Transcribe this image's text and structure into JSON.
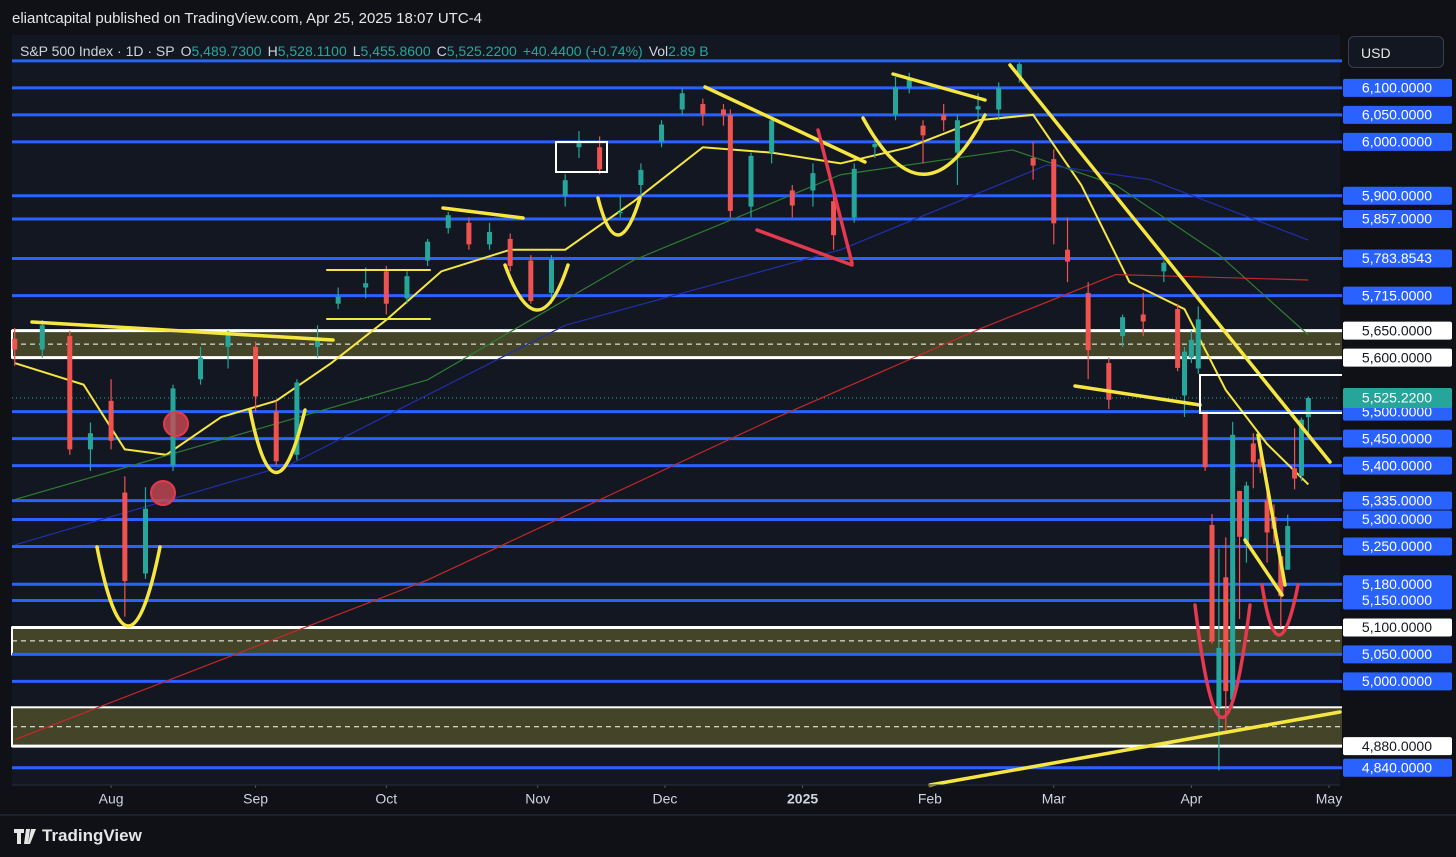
{
  "header": {
    "publisher": "eliantcapital published on TradingView.com, Apr 25, 2025 18:07 UTC-4",
    "brand": "TradingView",
    "currency": "USD"
  },
  "chart_data": {
    "type": "candlestick",
    "title": "S&P 500 Index · 1D · SP",
    "ohlc_legend": [
      {
        "key": "O",
        "value": "5,489.7300"
      },
      {
        "key": "H",
        "value": "5,528.1100"
      },
      {
        "key": "L",
        "value": "5,455.8600"
      },
      {
        "key": "C",
        "value": "5,525.2200"
      },
      {
        "key": "",
        "value": "+40.4400 (+0.74%)"
      },
      {
        "key": "Vol",
        "value": "2.89 B"
      }
    ],
    "up_color": "#26a69a",
    "down_color": "#ef5350",
    "xlim": [
      -0.4,
      192.6
    ],
    "ylim": [
      4808,
      6198
    ],
    "xticks": [
      {
        "value": 14,
        "label": "Aug"
      },
      {
        "value": 35,
        "label": "Sep"
      },
      {
        "value": 54,
        "label": "Oct"
      },
      {
        "value": 76,
        "label": "Nov"
      },
      {
        "value": 94.5,
        "label": "Dec"
      },
      {
        "value": 114.5,
        "label": "2025"
      },
      {
        "value": 133,
        "label": "Feb"
      },
      {
        "value": 151,
        "label": "Mar"
      },
      {
        "value": 171,
        "label": "Apr"
      },
      {
        "value": 191,
        "label": "May"
      }
    ],
    "candles": {
      "x": [
        0,
        4,
        8,
        11,
        14,
        16,
        19,
        23,
        27,
        31,
        35,
        38,
        41,
        44,
        47,
        51,
        54,
        57,
        60,
        63,
        66,
        69,
        72,
        75,
        78,
        80,
        82,
        85,
        88,
        91,
        94,
        97,
        100,
        103,
        104,
        107,
        110,
        113,
        116,
        119,
        122,
        125,
        128,
        130,
        132,
        135,
        137,
        140,
        143,
        146,
        148,
        151,
        153,
        156,
        159,
        161,
        164,
        167,
        169,
        170,
        171,
        172,
        173,
        174,
        175,
        176,
        177,
        178,
        179,
        180,
        181,
        182,
        183,
        184,
        185,
        186,
        187,
        188
      ],
      "open": [
        5635,
        5615,
        5640,
        5430,
        5520,
        5350,
        5200,
        5400,
        5560,
        5620,
        5620,
        5500,
        5420,
        5620,
        5700,
        5730,
        5760,
        5710,
        5780,
        5840,
        5850,
        5810,
        5820,
        5780,
        5720,
        5900,
        5990,
        5990,
        5870,
        5920,
        6000,
        6060,
        6070,
        6060,
        6050,
        5880,
        5980,
        5910,
        5910,
        5890,
        5860,
        5990,
        6050,
        6100,
        6030,
        6050,
        5980,
        6060,
        6060,
        6120,
        5970,
        5968,
        5800,
        5720,
        5590,
        5640,
        5680,
        5760,
        5690,
        5530,
        5600,
        5580,
        5500,
        5290,
        4953,
        5193,
        4966,
        5353,
        5255,
        5441,
        5412,
        5335,
        5305,
        5232,
        5207,
        5395,
        5381,
        5489.73
      ],
      "high": [
        5655,
        5670,
        5650,
        5480,
        5560,
        5380,
        5360,
        5550,
        5620,
        5650,
        5630,
        5520,
        5560,
        5660,
        5730,
        5767,
        5770,
        5760,
        5820,
        5870,
        5860,
        5850,
        5830,
        5790,
        5790,
        5940,
        6020,
        6010,
        5900,
        5960,
        6040,
        6099,
        6080,
        6070,
        6060,
        5980,
        6040,
        5920,
        5960,
        5910,
        5960,
        6010,
        6120,
        6128,
        6040,
        6070,
        6050,
        6090,
        6110,
        6147,
        6000,
        5986,
        5860,
        5740,
        5600,
        5680,
        5720,
        5780,
        5700,
        5620,
        5650,
        5695,
        5500,
        5310,
        5246,
        5267,
        5481,
        5353,
        5370,
        5460,
        5450,
        5367,
        5328,
        5232,
        5309,
        5469,
        5489,
        5528.11
      ],
      "low": [
        5585,
        5600,
        5420,
        5390,
        5430,
        5120,
        5190,
        5390,
        5550,
        5580,
        5500,
        5400,
        5410,
        5600,
        5690,
        5710,
        5680,
        5700,
        5770,
        5830,
        5800,
        5800,
        5760,
        5700,
        5700,
        5880,
        5970,
        5940,
        5860,
        5900,
        5990,
        6050,
        6030,
        6030,
        5860,
        5860,
        5960,
        5860,
        5880,
        5800,
        5850,
        5970,
        6040,
        6090,
        5960,
        6020,
        5920,
        6040,
        6040,
        6110,
        5930,
        5810,
        5740,
        5560,
        5505,
        5620,
        5640,
        5740,
        5575,
        5490,
        5590,
        5570,
        5390,
        5070,
        4835,
        4910,
        4950,
        5116,
        5220,
        5358,
        5386,
        5220,
        5255,
        5101,
        5207,
        5356,
        5371,
        5455.86
      ],
      "close": [
        5615,
        5660,
        5430,
        5460,
        5446,
        5186,
        5320,
        5543,
        5600,
        5648,
        5528,
        5408,
        5554,
        5634,
        5713,
        5738,
        5700,
        5751,
        5815,
        5864,
        5810,
        5833,
        5770,
        5705,
        5782,
        5929,
        6001,
        5949,
        5870,
        5948,
        6032,
        6090,
        6051,
        6050,
        5872,
        5974,
        6040,
        5882,
        5942,
        5827,
        5950,
        5996,
        6101,
        6119,
        6012,
        6040,
        6040,
        6066,
        6100,
        6144,
        5956,
        5849,
        5778,
        5614,
        5522,
        5675,
        5667,
        5776,
        5581,
        5611,
        5633,
        5671,
        5397,
        5074,
        5062,
        4982,
        5457,
        5268,
        5363,
        5406,
        5397,
        5276,
        5283,
        5158,
        5288,
        5376,
        5485,
        5525.22
      ]
    },
    "overlays": [
      {
        "color": "#f5e642",
        "x": [
          0,
          10,
          16,
          22,
          30,
          38,
          46,
          54,
          62,
          72,
          80,
          90,
          100,
          110,
          120,
          130,
          140,
          148,
          155,
          162,
          170,
          176,
          182,
          188
        ],
        "values": [
          5590,
          5550,
          5430,
          5420,
          5490,
          5520,
          5590,
          5670,
          5760,
          5800,
          5800,
          5890,
          5990,
          5980,
          5960,
          5990,
          6040,
          6050,
          5920,
          5740,
          5690,
          5540,
          5440,
          5365
        ]
      },
      {
        "color": "#2e7d32",
        "x": [
          0,
          30,
          60,
          90,
          120,
          145,
          160,
          175,
          188
        ],
        "values": [
          5337,
          5448,
          5559,
          5781,
          5939,
          5985,
          5920,
          5791,
          5642
        ]
      },
      {
        "color": "#1f2fa8",
        "x": [
          0,
          40,
          80,
          120,
          150,
          165,
          188
        ],
        "values": [
          5253,
          5402,
          5660,
          5800,
          5957,
          5930,
          5818
        ]
      },
      {
        "color": "#c62828",
        "x": [
          0,
          60,
          110,
          140,
          160,
          188
        ],
        "values": [
          4892,
          5188,
          5485,
          5652,
          5754,
          5744
        ]
      }
    ],
    "price_lines": [
      {
        "value": 6150,
        "color": "#2962ff"
      },
      {
        "value": 6100,
        "label": "6,100.0000",
        "color": "#2962ff"
      },
      {
        "value": 6050,
        "label": "6,050.0000",
        "color": "#2962ff"
      },
      {
        "value": 6000,
        "label": "6,000.0000",
        "color": "#2962ff"
      },
      {
        "value": 5900,
        "label": "5,900.0000",
        "color": "#2962ff"
      },
      {
        "value": 5857,
        "label": "5,857.0000",
        "color": "#2962ff"
      },
      {
        "value": 5783.8543,
        "label": "5,783.8543",
        "color": "#2962ff"
      },
      {
        "value": 5715,
        "label": "5,715.0000",
        "color": "#2962ff"
      },
      {
        "value": 5650,
        "label": "5,650.0000",
        "color": "#ffffff"
      },
      {
        "value": 5600,
        "label": "5,600.0000",
        "color": "#ffffff"
      },
      {
        "value": 5500,
        "label": "5,500.0000",
        "color": "#2962ff"
      },
      {
        "value": 5450,
        "label": "5,450.0000",
        "color": "#2962ff"
      },
      {
        "value": 5400,
        "label": "5,400.0000",
        "color": "#2962ff"
      },
      {
        "value": 5335,
        "label": "5,335.0000",
        "color": "#2962ff"
      },
      {
        "value": 5300,
        "label": "5,300.0000",
        "color": "#2962ff"
      },
      {
        "value": 5250,
        "label": "5,250.0000",
        "color": "#2962ff"
      },
      {
        "value": 5180,
        "label": "5,180.0000",
        "color": "#2962ff"
      },
      {
        "value": 5150,
        "label": "5,150.0000",
        "color": "#2962ff"
      },
      {
        "value": 5100,
        "label": "5,100.0000",
        "color": "#ffffff"
      },
      {
        "value": 5050,
        "label": "5,050.0000",
        "color": "#2962ff"
      },
      {
        "value": 5000,
        "label": "5,000.0000",
        "color": "#2962ff"
      },
      {
        "value": 4880,
        "label": "4,880.0000",
        "color": "#ffffff"
      },
      {
        "value": 4840,
        "label": "4,840.0000",
        "color": "#2962ff"
      }
    ],
    "zones": [
      {
        "low": 5600,
        "high": 5650
      },
      {
        "low": 5050,
        "high": 5100
      },
      {
        "low": 4880,
        "high": 4952
      }
    ],
    "last_price": {
      "value": 5525.22,
      "label": "5,525.2200",
      "color": "#26a69a"
    }
  }
}
